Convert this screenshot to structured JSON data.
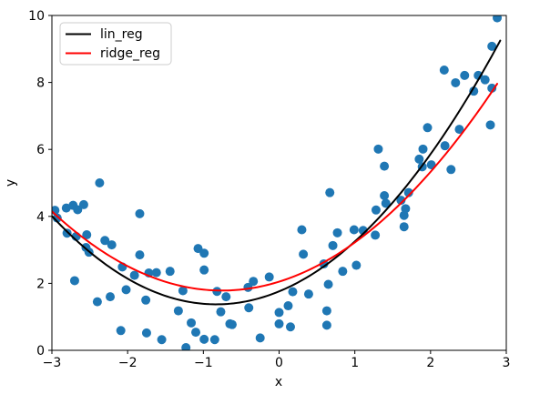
{
  "chart_data": {
    "type": "scatter",
    "title": "",
    "xlabel": "x",
    "ylabel": "y",
    "xlim": [
      -3,
      3
    ],
    "ylim": [
      0,
      10
    ],
    "xticks": [
      -3,
      -2,
      -1,
      0,
      1,
      2,
      3
    ],
    "yticks": [
      0,
      2,
      4,
      6,
      8,
      10
    ],
    "grid": false,
    "legend_position": "upper-left",
    "legend": [
      {
        "label": "lin_reg",
        "color": "#000000"
      },
      {
        "label": "ridge_reg",
        "color": "#ff0000"
      }
    ],
    "scatter": {
      "color": "#1f77b4",
      "marker": "circle",
      "points": [
        [
          -2.96,
          4.18
        ],
        [
          -2.93,
          3.95
        ],
        [
          -2.81,
          4.25
        ],
        [
          -2.72,
          4.33
        ],
        [
          -2.66,
          4.2
        ],
        [
          -2.58,
          4.35
        ],
        [
          -2.37,
          5.0
        ],
        [
          -2.8,
          3.5
        ],
        [
          -2.68,
          3.4
        ],
        [
          -2.54,
          3.45
        ],
        [
          -2.55,
          3.07
        ],
        [
          -2.51,
          2.93
        ],
        [
          -2.3,
          3.28
        ],
        [
          -2.21,
          3.15
        ],
        [
          -2.7,
          2.08
        ],
        [
          -2.4,
          1.45
        ],
        [
          -2.23,
          1.6
        ],
        [
          -2.09,
          0.59
        ],
        [
          -2.07,
          2.49
        ],
        [
          -2.02,
          1.81
        ],
        [
          -1.91,
          2.24
        ],
        [
          -1.84,
          4.08
        ],
        [
          -1.84,
          2.85
        ],
        [
          -1.76,
          1.5
        ],
        [
          -1.75,
          0.52
        ],
        [
          -1.72,
          2.31
        ],
        [
          -1.62,
          2.32
        ],
        [
          -1.55,
          0.32
        ],
        [
          -1.44,
          2.36
        ],
        [
          -1.33,
          1.18
        ],
        [
          -1.27,
          1.78
        ],
        [
          -1.23,
          0.08
        ],
        [
          -1.16,
          0.82
        ],
        [
          -1.1,
          0.54
        ],
        [
          -1.07,
          3.04
        ],
        [
          -0.99,
          2.9
        ],
        [
          -0.99,
          2.4
        ],
        [
          -0.99,
          0.33
        ],
        [
          -0.85,
          0.32
        ],
        [
          -0.82,
          1.76
        ],
        [
          -0.77,
          1.15
        ],
        [
          -0.7,
          1.6
        ],
        [
          -0.65,
          0.79
        ],
        [
          -0.62,
          0.77
        ],
        [
          -0.41,
          1.88
        ],
        [
          -0.4,
          1.27
        ],
        [
          -0.34,
          2.06
        ],
        [
          -0.25,
          0.37
        ],
        [
          -0.13,
          2.19
        ],
        [
          0.0,
          1.13
        ],
        [
          0.0,
          0.79
        ],
        [
          0.12,
          1.33
        ],
        [
          0.15,
          0.7
        ],
        [
          0.18,
          1.75
        ],
        [
          0.3,
          3.6
        ],
        [
          0.32,
          2.87
        ],
        [
          0.39,
          1.68
        ],
        [
          0.59,
          2.58
        ],
        [
          0.63,
          1.18
        ],
        [
          0.63,
          0.75
        ],
        [
          0.65,
          1.97
        ],
        [
          0.67,
          4.71
        ],
        [
          0.71,
          3.13
        ],
        [
          0.77,
          3.51
        ],
        [
          0.84,
          2.36
        ],
        [
          0.99,
          3.6
        ],
        [
          1.02,
          2.54
        ],
        [
          1.11,
          3.58
        ],
        [
          1.27,
          3.44
        ],
        [
          1.28,
          4.19
        ],
        [
          1.31,
          6.01
        ],
        [
          1.39,
          5.5
        ],
        [
          1.39,
          4.62
        ],
        [
          1.41,
          4.39
        ],
        [
          1.61,
          4.48
        ],
        [
          1.65,
          4.03
        ],
        [
          1.65,
          3.69
        ],
        [
          1.67,
          4.23
        ],
        [
          1.71,
          4.71
        ],
        [
          1.85,
          5.71
        ],
        [
          1.89,
          5.48
        ],
        [
          1.9,
          6.01
        ],
        [
          1.96,
          6.65
        ],
        [
          2.01,
          5.54
        ],
        [
          2.18,
          8.37
        ],
        [
          2.19,
          6.11
        ],
        [
          2.27,
          5.4
        ],
        [
          2.33,
          7.99
        ],
        [
          2.38,
          6.6
        ],
        [
          2.45,
          8.21
        ],
        [
          2.57,
          7.74
        ],
        [
          2.63,
          8.21
        ],
        [
          2.72,
          8.08
        ],
        [
          2.79,
          6.73
        ],
        [
          2.81,
          9.08
        ],
        [
          2.81,
          7.83
        ],
        [
          2.88,
          9.93
        ]
      ]
    },
    "curves": [
      {
        "name": "lin_reg",
        "color": "#000000",
        "poly_coeffs": [
          0.56,
          0.93,
          1.76
        ],
        "x_range": [
          -3,
          2.92
        ]
      },
      {
        "name": "ridge_reg",
        "color": "#ff0000",
        "poly_coeffs": [
          0.468,
          0.704,
          2.05
        ],
        "x_range": [
          -3,
          2.91
        ]
      }
    ]
  }
}
